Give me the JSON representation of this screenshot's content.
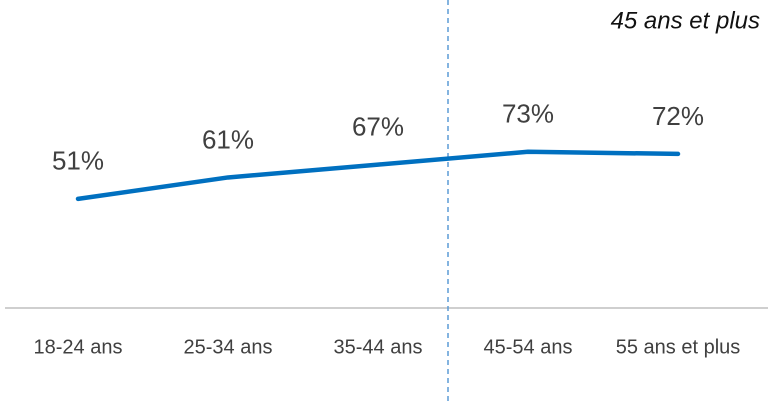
{
  "chart_data": {
    "type": "line",
    "annotation": "45 ans et plus",
    "categories": [
      "18-24 ans",
      "25-34 ans",
      "35-44 ans",
      "45-54 ans",
      "55 ans et plus"
    ],
    "series": [
      {
        "name": null,
        "color": "#0070c0",
        "values": [
          51,
          61,
          67,
          73,
          72
        ],
        "value_labels": [
          "51%",
          "61%",
          "67%",
          "73%",
          "72%"
        ]
      }
    ],
    "ylim": [
      0,
      100
    ]
  }
}
